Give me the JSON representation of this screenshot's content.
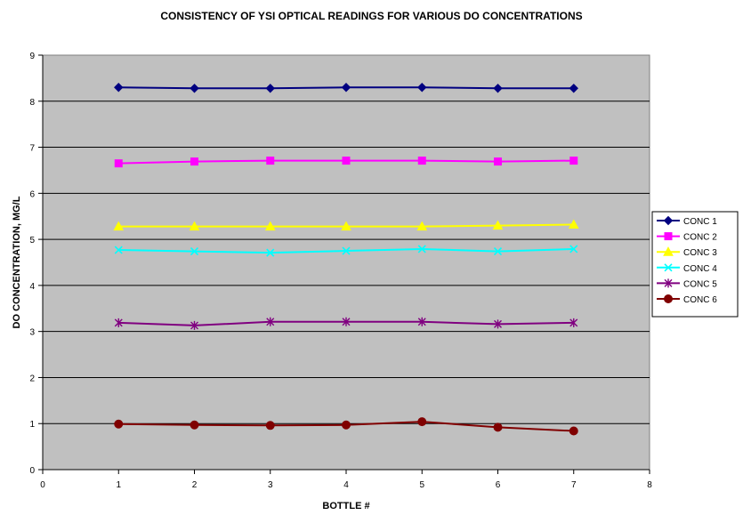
{
  "chart_data": {
    "type": "line",
    "title": "CONSISTENCY OF YSI OPTICAL READINGS FOR VARIOUS DO CONCENTRATIONS",
    "xlabel": "BOTTLE #",
    "ylabel": "DO CONCENTRATION, MG/L",
    "xlim": [
      0,
      8
    ],
    "ylim": [
      0,
      9
    ],
    "xticks": [
      0,
      1,
      2,
      3,
      4,
      5,
      6,
      7,
      8
    ],
    "yticks": [
      0,
      1,
      2,
      3,
      4,
      5,
      6,
      7,
      8,
      9
    ],
    "grid": "horizontal",
    "legend_position": "right",
    "plot_background": "#c0c0c0",
    "x": [
      1,
      2,
      3,
      4,
      5,
      6,
      7
    ],
    "series": [
      {
        "name": "CONC 1",
        "color": "#000080",
        "marker": "diamond",
        "values": [
          8.3,
          8.28,
          8.28,
          8.3,
          8.3,
          8.28,
          8.28
        ]
      },
      {
        "name": "CONC 2",
        "color": "#ff00ff",
        "marker": "square",
        "values": [
          6.65,
          6.69,
          6.71,
          6.71,
          6.71,
          6.69,
          6.71
        ]
      },
      {
        "name": "CONC 3",
        "color": "#ffff00",
        "marker": "triangle",
        "values": [
          5.28,
          5.28,
          5.28,
          5.28,
          5.28,
          5.3,
          5.32
        ]
      },
      {
        "name": "CONC 4",
        "color": "#00ffff",
        "marker": "x",
        "values": [
          4.77,
          4.74,
          4.71,
          4.75,
          4.79,
          4.74,
          4.79
        ]
      },
      {
        "name": "CONC 5",
        "color": "#800080",
        "marker": "star",
        "values": [
          3.19,
          3.13,
          3.21,
          3.21,
          3.21,
          3.16,
          3.19
        ]
      },
      {
        "name": "CONC 6",
        "color": "#800000",
        "marker": "circle",
        "values": [
          0.99,
          0.97,
          0.96,
          0.97,
          1.04,
          0.92,
          0.84
        ]
      }
    ]
  }
}
